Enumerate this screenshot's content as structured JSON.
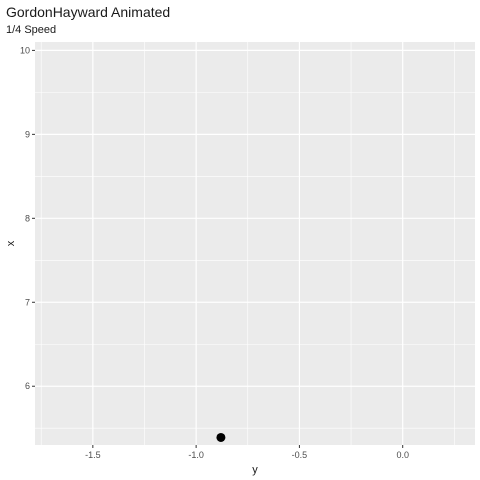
{
  "chart_data": {
    "type": "scatter",
    "title": "GordonHayward Animated",
    "subtitle": "1/4 Speed",
    "xlabel": "y",
    "ylabel": "x",
    "xlim": [
      -1.78,
      0.35
    ],
    "ylim": [
      5.3,
      10.1
    ],
    "x_ticks": [
      -1.5,
      -1.0,
      -0.5,
      0.0
    ],
    "x_tick_labels": [
      "-1.5",
      "-1.0",
      "-0.5",
      "0.0"
    ],
    "y_ticks": [
      6,
      7,
      8,
      9,
      10
    ],
    "y_tick_labels": [
      "6",
      "7",
      "8",
      "9",
      "10"
    ],
    "grid": true,
    "panel_background": "#ebebeb",
    "grid_color": "#ffffff",
    "point_color": "#000000",
    "points": [
      {
        "x": -0.88,
        "y": 5.39
      }
    ]
  }
}
